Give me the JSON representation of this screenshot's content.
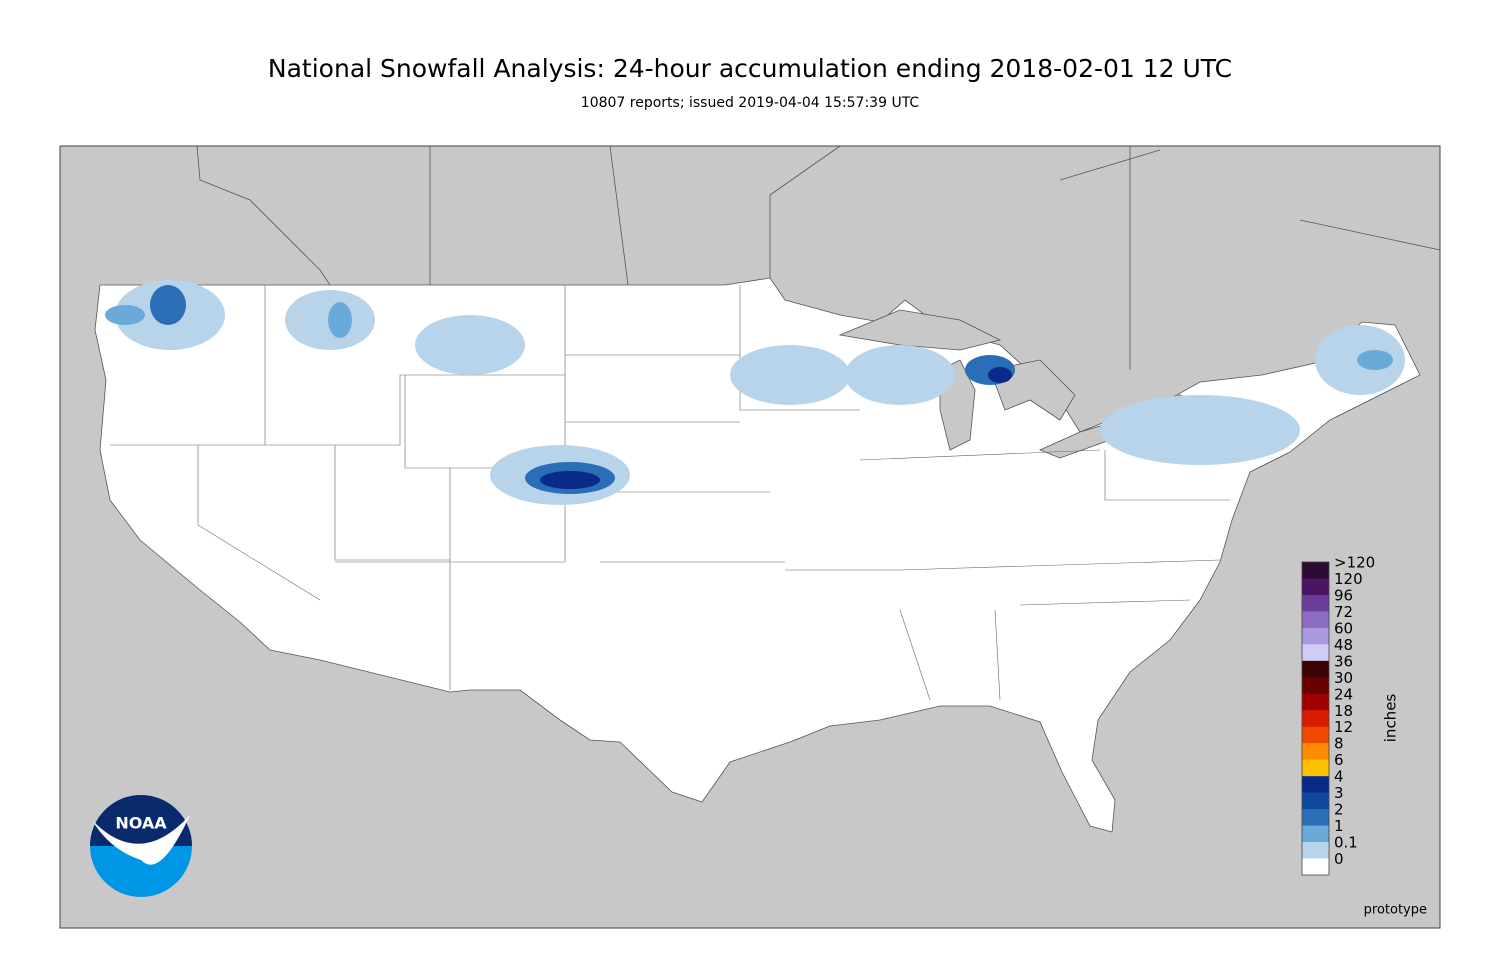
{
  "header": {
    "title": "National Snowfall Analysis: 24-hour accumulation ending 2018-02-01 12 UTC",
    "subtitle": "10807 reports; issued 2019-04-04 15:57:39 UTC"
  },
  "logo": {
    "text": "NOAA"
  },
  "legend": {
    "unit": "inches",
    "items": [
      {
        "label": ">120",
        "color": "#2b0a33"
      },
      {
        "label": "120",
        "color": "#4a1562"
      },
      {
        "label": "96",
        "color": "#6a3d9a"
      },
      {
        "label": "72",
        "color": "#8c6cc4"
      },
      {
        "label": "60",
        "color": "#a99ae0"
      },
      {
        "label": "48",
        "color": "#d0ccf8"
      },
      {
        "label": "36",
        "color": "#3b0303"
      },
      {
        "label": "30",
        "color": "#6b0000"
      },
      {
        "label": "24",
        "color": "#a00000"
      },
      {
        "label": "18",
        "color": "#d81c00"
      },
      {
        "label": "12",
        "color": "#f04a00"
      },
      {
        "label": "8",
        "color": "#ff8c00"
      },
      {
        "label": "6",
        "color": "#ffc000"
      },
      {
        "label": "4",
        "color": "#0a2a8a"
      },
      {
        "label": "3",
        "color": "#0d4a9c"
      },
      {
        "label": "2",
        "color": "#2a6eb8"
      },
      {
        "label": "1",
        "color": "#6aaad8"
      },
      {
        "label": "0.1",
        "color": "#b8d4ea"
      },
      {
        "label": "0",
        "color": "#ffffff"
      }
    ]
  },
  "footer": {
    "note": "prototype"
  }
}
